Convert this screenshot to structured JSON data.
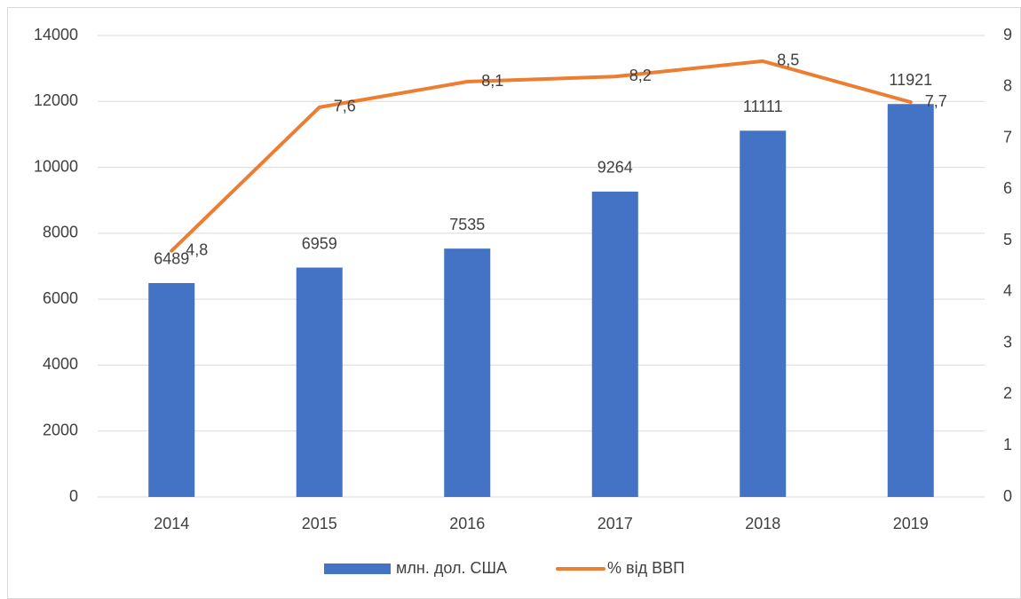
{
  "chart_data": {
    "type": "bar",
    "categories": [
      "2014",
      "2015",
      "2016",
      "2017",
      "2018",
      "2019"
    ],
    "series": [
      {
        "name": "млн. дол. США",
        "color": "#4472c4",
        "values": [
          6489,
          6959,
          7535,
          9264,
          11111,
          11921
        ]
      },
      {
        "name": "% від ВВП",
        "type": "line",
        "axis": "y2",
        "color": "#ed7d31",
        "values": [
          4.8,
          7.6,
          8.1,
          8.2,
          8.5,
          7.7
        ],
        "value_labels": [
          "4,8",
          "7,6",
          "8,1",
          "8,2",
          "8,5",
          "7,7"
        ]
      }
    ],
    "ylim": [
      0,
      14000
    ],
    "yticks": [
      0,
      2000,
      4000,
      6000,
      8000,
      10000,
      12000,
      14000
    ],
    "y2lim": [
      0,
      9
    ],
    "y2ticks": [
      0,
      1,
      2,
      3,
      4,
      5,
      6,
      7,
      8,
      9
    ],
    "grid": true,
    "legend": "bottom"
  }
}
